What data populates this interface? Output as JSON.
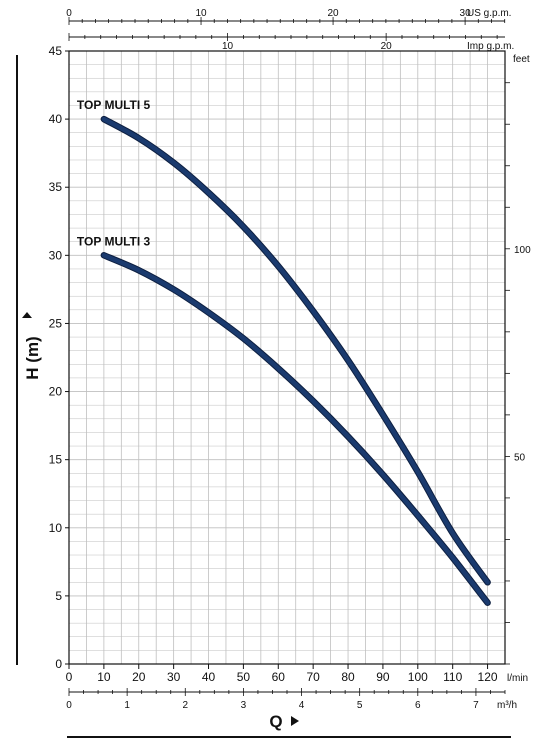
{
  "chart_data": {
    "type": "line",
    "ylabel": "H  (m)",
    "xlabel": "Q",
    "grid": true,
    "y_axis": {
      "unit": "",
      "range": [
        0,
        45
      ],
      "ticks": [
        "0",
        "5",
        "10",
        "15",
        "20",
        "25",
        "30",
        "35",
        "40",
        "45"
      ]
    },
    "x_axis_lmin": {
      "unit": "l/min",
      "range": [
        0,
        125
      ],
      "ticks": [
        "0",
        "10",
        "20",
        "30",
        "40",
        "50",
        "60",
        "70",
        "80",
        "90",
        "100",
        "110",
        "120"
      ]
    },
    "x_axis_m3h": {
      "unit": "m³/h",
      "ticks": [
        "0",
        "1",
        "2",
        "3",
        "4",
        "5",
        "6",
        "7"
      ]
    },
    "x_axis_usgpm": {
      "unit": "US g.p.m.",
      "ticks": [
        "0",
        "10",
        "20",
        "30"
      ]
    },
    "x_axis_impgpm": {
      "unit": "Imp g.p.m.",
      "ticks": [
        "10",
        "20"
      ]
    },
    "y_axis_feet": {
      "unit": "feet",
      "ticks": [
        "50",
        "100"
      ]
    },
    "series": [
      {
        "name": "TOP MULTI 5",
        "color": "#1a3a6e",
        "x": [
          10,
          20,
          30,
          40,
          50,
          60,
          70,
          80,
          90,
          100,
          110,
          120
        ],
        "y": [
          40,
          38.6,
          36.8,
          34.6,
          32.1,
          29.2,
          25.9,
          22.3,
          18.3,
          14.1,
          9.6,
          6
        ]
      },
      {
        "name": "TOP MULTI 3",
        "color": "#1a3a6e",
        "x": [
          10,
          20,
          30,
          40,
          50,
          60,
          70,
          80,
          90,
          100,
          110,
          120
        ],
        "y": [
          30,
          28.9,
          27.5,
          25.8,
          23.9,
          21.7,
          19.3,
          16.7,
          13.9,
          10.9,
          7.8,
          4.5
        ]
      }
    ]
  }
}
